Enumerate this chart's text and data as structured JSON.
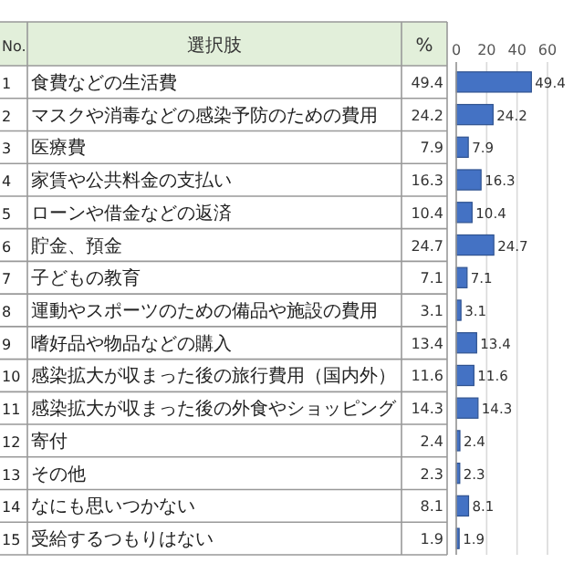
{
  "chart_data": {
    "type": "bar",
    "orientation": "horizontal",
    "annotations": [
      "No.",
      "49.4",
      "24.2",
      "7.9",
      "16.3",
      "10.4",
      "24.7",
      "7.1",
      "3.1",
      "13.4",
      "11.6",
      "14.3",
      "2.4",
      "2.3",
      "8.1",
      "1.9"
    ],
    "ylabel": "選択肢",
    "xlabel": "%",
    "categories": [
      "1 食費などの生活費",
      "2 マスクや消毒などの感染予防のための費用",
      "3 医療費",
      "4 家賃や公共料金の支払い",
      "5 ローンや借金などの返済",
      "6 貯金、預金",
      "7 子どもの教育",
      "8 運動やスポーツのための備品や施設の費用",
      "9 嗜好品や物品などの購入",
      "10 感染拡大が収まった後の旅行費用（国内外）",
      "11 感染拡大が収まった後の外食やショッピング",
      "12 寄付",
      "13 その他",
      "14 なにも思いつかない",
      "15 受給するつもりはない"
    ],
    "values": [
      49.4,
      24.2,
      7.9,
      16.3,
      10.4,
      24.7,
      7.1,
      3.1,
      13.4,
      11.6,
      14.3,
      2.4,
      2.3,
      8.1,
      1.9
    ],
    "color": "#4472c4",
    "xlim": [
      0,
      60
    ],
    "xticks": [
      0,
      20,
      40,
      60
    ],
    "grid": "x",
    "data_labels": true
  }
}
